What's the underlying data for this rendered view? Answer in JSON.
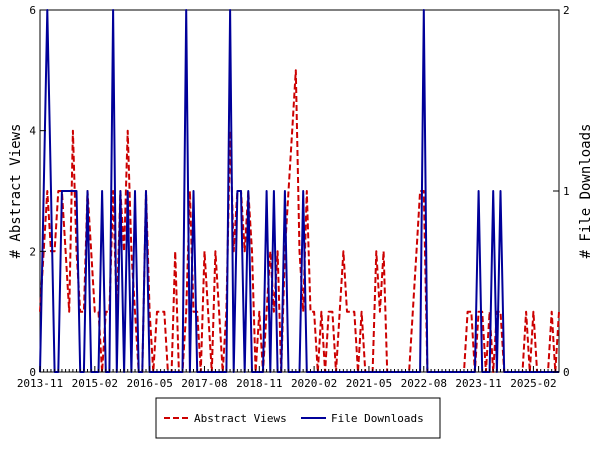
{
  "chart_data": {
    "type": "line",
    "ylabel_left": "# Abstract Views",
    "ylabel_right": "# File Downloads",
    "ylim_left": [
      0,
      6
    ],
    "ylim_right": [
      0,
      2
    ],
    "yticks_left": [
      "0",
      "2",
      "4",
      "6"
    ],
    "yticks_right": [
      "0",
      "1",
      "2"
    ],
    "xlim": [
      "2013-11",
      "2025-09"
    ],
    "xticks": [
      "2013-11",
      "2015-02",
      "2016-05",
      "2017-08",
      "2018-11",
      "2020-02",
      "2021-05",
      "2022-08",
      "2023-11",
      "2025-02"
    ],
    "grid": false,
    "legend_position": "bottom-center",
    "series": [
      {
        "name": "Abstract Views",
        "axis": "left",
        "color": "#cc0000",
        "style": "dashed",
        "points": [
          [
            "2013-11",
            1
          ],
          [
            "2013-12",
            2
          ],
          [
            "2014-01",
            3
          ],
          [
            "2014-02",
            2
          ],
          [
            "2014-03",
            2
          ],
          [
            "2014-04",
            3
          ],
          [
            "2014-05",
            3
          ],
          [
            "2014-06",
            2
          ],
          [
            "2014-07",
            1
          ],
          [
            "2014-08",
            4
          ],
          [
            "2014-09",
            2
          ],
          [
            "2014-10",
            1
          ],
          [
            "2014-11",
            1
          ],
          [
            "2014-12",
            3
          ],
          [
            "2015-01",
            2
          ],
          [
            "2015-02",
            1
          ],
          [
            "2015-03",
            1
          ],
          [
            "2015-04",
            0
          ],
          [
            "2015-05",
            1
          ],
          [
            "2015-06",
            1
          ],
          [
            "2015-07",
            3
          ],
          [
            "2015-08",
            1
          ],
          [
            "2015-09",
            3
          ],
          [
            "2015-10",
            2
          ],
          [
            "2015-11",
            4
          ],
          [
            "2015-12",
            2
          ],
          [
            "2016-01",
            1
          ],
          [
            "2016-02",
            0
          ],
          [
            "2016-03",
            0
          ],
          [
            "2016-04",
            3
          ],
          [
            "2016-05",
            1
          ],
          [
            "2016-06",
            0
          ],
          [
            "2016-07",
            1
          ],
          [
            "2016-08",
            1
          ],
          [
            "2016-09",
            1
          ],
          [
            "2016-10",
            0
          ],
          [
            "2016-11",
            0
          ],
          [
            "2016-12",
            2
          ],
          [
            "2017-01",
            0
          ],
          [
            "2017-02",
            0
          ],
          [
            "2017-03",
            1
          ],
          [
            "2017-04",
            3
          ],
          [
            "2017-05",
            1
          ],
          [
            "2017-06",
            1
          ],
          [
            "2017-07",
            0
          ],
          [
            "2017-08",
            2
          ],
          [
            "2017-09",
            1
          ],
          [
            "2017-10",
            0
          ],
          [
            "2017-11",
            2
          ],
          [
            "2017-12",
            1
          ],
          [
            "2018-01",
            0
          ],
          [
            "2018-02",
            1
          ],
          [
            "2018-03",
            4
          ],
          [
            "2018-04",
            2
          ],
          [
            "2018-05",
            3
          ],
          [
            "2018-06",
            3
          ],
          [
            "2018-07",
            2
          ],
          [
            "2018-08",
            3
          ],
          [
            "2018-09",
            2
          ],
          [
            "2018-10",
            0
          ],
          [
            "2018-11",
            1
          ],
          [
            "2018-12",
            0
          ],
          [
            "2019-01",
            1
          ],
          [
            "2019-02",
            2
          ],
          [
            "2019-03",
            1
          ],
          [
            "2019-04",
            2
          ],
          [
            "2019-05",
            0
          ],
          [
            "2019-06",
            2
          ],
          [
            "2019-07",
            3
          ],
          [
            "2019-08",
            4
          ],
          [
            "2019-09",
            5
          ],
          [
            "2019-10",
            2
          ],
          [
            "2019-11",
            1
          ],
          [
            "2019-12",
            3
          ],
          [
            "2020-01",
            1
          ],
          [
            "2020-02",
            1
          ],
          [
            "2020-03",
            0
          ],
          [
            "2020-04",
            1
          ],
          [
            "2020-05",
            0
          ],
          [
            "2020-06",
            1
          ],
          [
            "2020-07",
            1
          ],
          [
            "2020-08",
            0
          ],
          [
            "2020-09",
            1
          ],
          [
            "2020-10",
            2
          ],
          [
            "2020-11",
            1
          ],
          [
            "2020-12",
            1
          ],
          [
            "2021-01",
            1
          ],
          [
            "2021-02",
            0
          ],
          [
            "2021-03",
            1
          ],
          [
            "2021-04",
            0
          ],
          [
            "2021-05",
            0
          ],
          [
            "2021-06",
            0
          ],
          [
            "2021-07",
            2
          ],
          [
            "2021-08",
            1
          ],
          [
            "2021-09",
            2
          ],
          [
            "2021-10",
            0
          ],
          [
            "2021-11",
            0
          ],
          [
            "2021-12",
            0
          ],
          [
            "2022-01",
            0
          ],
          [
            "2022-02",
            0
          ],
          [
            "2022-03",
            0
          ],
          [
            "2022-04",
            0
          ],
          [
            "2022-05",
            1
          ],
          [
            "2022-06",
            2
          ],
          [
            "2022-07",
            3
          ],
          [
            "2022-08",
            3
          ],
          [
            "2022-09",
            0
          ],
          [
            "2022-10",
            0
          ],
          [
            "2022-11",
            0
          ],
          [
            "2022-12",
            0
          ],
          [
            "2023-01",
            0
          ],
          [
            "2023-02",
            0
          ],
          [
            "2023-03",
            0
          ],
          [
            "2023-04",
            0
          ],
          [
            "2023-05",
            0
          ],
          [
            "2023-06",
            0
          ],
          [
            "2023-07",
            0
          ],
          [
            "2023-08",
            1
          ],
          [
            "2023-09",
            1
          ],
          [
            "2023-10",
            0
          ],
          [
            "2023-11",
            1
          ],
          [
            "2023-12",
            1
          ],
          [
            "2024-01",
            0
          ],
          [
            "2024-02",
            1
          ],
          [
            "2024-03",
            0
          ],
          [
            "2024-04",
            1
          ],
          [
            "2024-05",
            1
          ],
          [
            "2024-06",
            0
          ],
          [
            "2024-07",
            0
          ],
          [
            "2024-08",
            0
          ],
          [
            "2024-09",
            0
          ],
          [
            "2024-10",
            0
          ],
          [
            "2024-11",
            0
          ],
          [
            "2024-12",
            1
          ],
          [
            "2025-01",
            0
          ],
          [
            "2025-02",
            1
          ],
          [
            "2025-03",
            0
          ],
          [
            "2025-04",
            0
          ],
          [
            "2025-05",
            0
          ],
          [
            "2025-06",
            0
          ],
          [
            "2025-07",
            1
          ],
          [
            "2025-08",
            0
          ],
          [
            "2025-09",
            1
          ]
        ]
      },
      {
        "name": "File Downloads",
        "axis": "right",
        "color": "#000099",
        "style": "solid",
        "points": [
          [
            "2013-11",
            0
          ],
          [
            "2013-12",
            1
          ],
          [
            "2014-01",
            2
          ],
          [
            "2014-02",
            1
          ],
          [
            "2014-03",
            0
          ],
          [
            "2014-04",
            0
          ],
          [
            "2014-05",
            1
          ],
          [
            "2014-06",
            1
          ],
          [
            "2014-07",
            1
          ],
          [
            "2014-08",
            1
          ],
          [
            "2014-09",
            1
          ],
          [
            "2014-10",
            0
          ],
          [
            "2014-11",
            0
          ],
          [
            "2014-12",
            1
          ],
          [
            "2015-01",
            0
          ],
          [
            "2015-02",
            0
          ],
          [
            "2015-03",
            0
          ],
          [
            "2015-04",
            1
          ],
          [
            "2015-05",
            0
          ],
          [
            "2015-06",
            0
          ],
          [
            "2015-07",
            2
          ],
          [
            "2015-08",
            0
          ],
          [
            "2015-09",
            1
          ],
          [
            "2015-10",
            0
          ],
          [
            "2015-11",
            1
          ],
          [
            "2015-12",
            0
          ],
          [
            "2016-01",
            1
          ],
          [
            "2016-02",
            0
          ],
          [
            "2016-03",
            0
          ],
          [
            "2016-04",
            1
          ],
          [
            "2016-05",
            0
          ],
          [
            "2016-06",
            0
          ],
          [
            "2016-07",
            0
          ],
          [
            "2016-08",
            0
          ],
          [
            "2016-09",
            0
          ],
          [
            "2016-10",
            0
          ],
          [
            "2016-11",
            0
          ],
          [
            "2016-12",
            0
          ],
          [
            "2017-01",
            0
          ],
          [
            "2017-02",
            0
          ],
          [
            "2017-03",
            2
          ],
          [
            "2017-04",
            0
          ],
          [
            "2017-05",
            1
          ],
          [
            "2017-06",
            0
          ],
          [
            "2017-07",
            0
          ],
          [
            "2017-08",
            0
          ],
          [
            "2017-09",
            0
          ],
          [
            "2017-10",
            0
          ],
          [
            "2017-11",
            0
          ],
          [
            "2017-12",
            0
          ],
          [
            "2018-01",
            0
          ],
          [
            "2018-02",
            0
          ],
          [
            "2018-03",
            2
          ],
          [
            "2018-04",
            0
          ],
          [
            "2018-05",
            1
          ],
          [
            "2018-06",
            1
          ],
          [
            "2018-07",
            0
          ],
          [
            "2018-08",
            1
          ],
          [
            "2018-09",
            0
          ],
          [
            "2018-10",
            0
          ],
          [
            "2018-11",
            0
          ],
          [
            "2018-12",
            0
          ],
          [
            "2019-01",
            1
          ],
          [
            "2019-02",
            0
          ],
          [
            "2019-03",
            1
          ],
          [
            "2019-04",
            0
          ],
          [
            "2019-05",
            0
          ],
          [
            "2019-06",
            1
          ],
          [
            "2019-07",
            0
          ],
          [
            "2019-08",
            0
          ],
          [
            "2019-09",
            0
          ],
          [
            "2019-10",
            0
          ],
          [
            "2019-11",
            1
          ],
          [
            "2019-12",
            0
          ],
          [
            "2020-01",
            0
          ],
          [
            "2020-02",
            0
          ],
          [
            "2020-03",
            0
          ],
          [
            "2020-04",
            0
          ],
          [
            "2020-05",
            0
          ],
          [
            "2020-06",
            0
          ],
          [
            "2020-07",
            0
          ],
          [
            "2020-08",
            0
          ],
          [
            "2020-09",
            0
          ],
          [
            "2020-10",
            0
          ],
          [
            "2020-11",
            0
          ],
          [
            "2020-12",
            0
          ],
          [
            "2021-01",
            0
          ],
          [
            "2021-02",
            0
          ],
          [
            "2021-03",
            0
          ],
          [
            "2021-04",
            0
          ],
          [
            "2021-05",
            0
          ],
          [
            "2021-06",
            0
          ],
          [
            "2021-07",
            0
          ],
          [
            "2021-08",
            0
          ],
          [
            "2021-09",
            0
          ],
          [
            "2021-10",
            0
          ],
          [
            "2021-11",
            0
          ],
          [
            "2021-12",
            0
          ],
          [
            "2022-01",
            0
          ],
          [
            "2022-02",
            0
          ],
          [
            "2022-03",
            0
          ],
          [
            "2022-04",
            0
          ],
          [
            "2022-05",
            0
          ],
          [
            "2022-06",
            0
          ],
          [
            "2022-07",
            0
          ],
          [
            "2022-08",
            2
          ],
          [
            "2022-09",
            0
          ],
          [
            "2022-10",
            0
          ],
          [
            "2022-11",
            0
          ],
          [
            "2022-12",
            0
          ],
          [
            "2023-01",
            0
          ],
          [
            "2023-02",
            0
          ],
          [
            "2023-03",
            0
          ],
          [
            "2023-04",
            0
          ],
          [
            "2023-05",
            0
          ],
          [
            "2023-06",
            0
          ],
          [
            "2023-07",
            0
          ],
          [
            "2023-08",
            0
          ],
          [
            "2023-09",
            0
          ],
          [
            "2023-10",
            0
          ],
          [
            "2023-11",
            1
          ],
          [
            "2023-12",
            0
          ],
          [
            "2024-01",
            0
          ],
          [
            "2024-02",
            0
          ],
          [
            "2024-03",
            1
          ],
          [
            "2024-04",
            0
          ],
          [
            "2024-05",
            1
          ],
          [
            "2024-06",
            0
          ],
          [
            "2024-07",
            0
          ],
          [
            "2024-08",
            0
          ],
          [
            "2024-09",
            0
          ],
          [
            "2024-10",
            0
          ],
          [
            "2024-11",
            0
          ],
          [
            "2024-12",
            0
          ],
          [
            "2025-01",
            0
          ],
          [
            "2025-02",
            0
          ],
          [
            "2025-03",
            0
          ],
          [
            "2025-04",
            0
          ],
          [
            "2025-05",
            0
          ],
          [
            "2025-06",
            0
          ],
          [
            "2025-07",
            0
          ],
          [
            "2025-08",
            0
          ],
          [
            "2025-09",
            0
          ]
        ]
      }
    ]
  }
}
